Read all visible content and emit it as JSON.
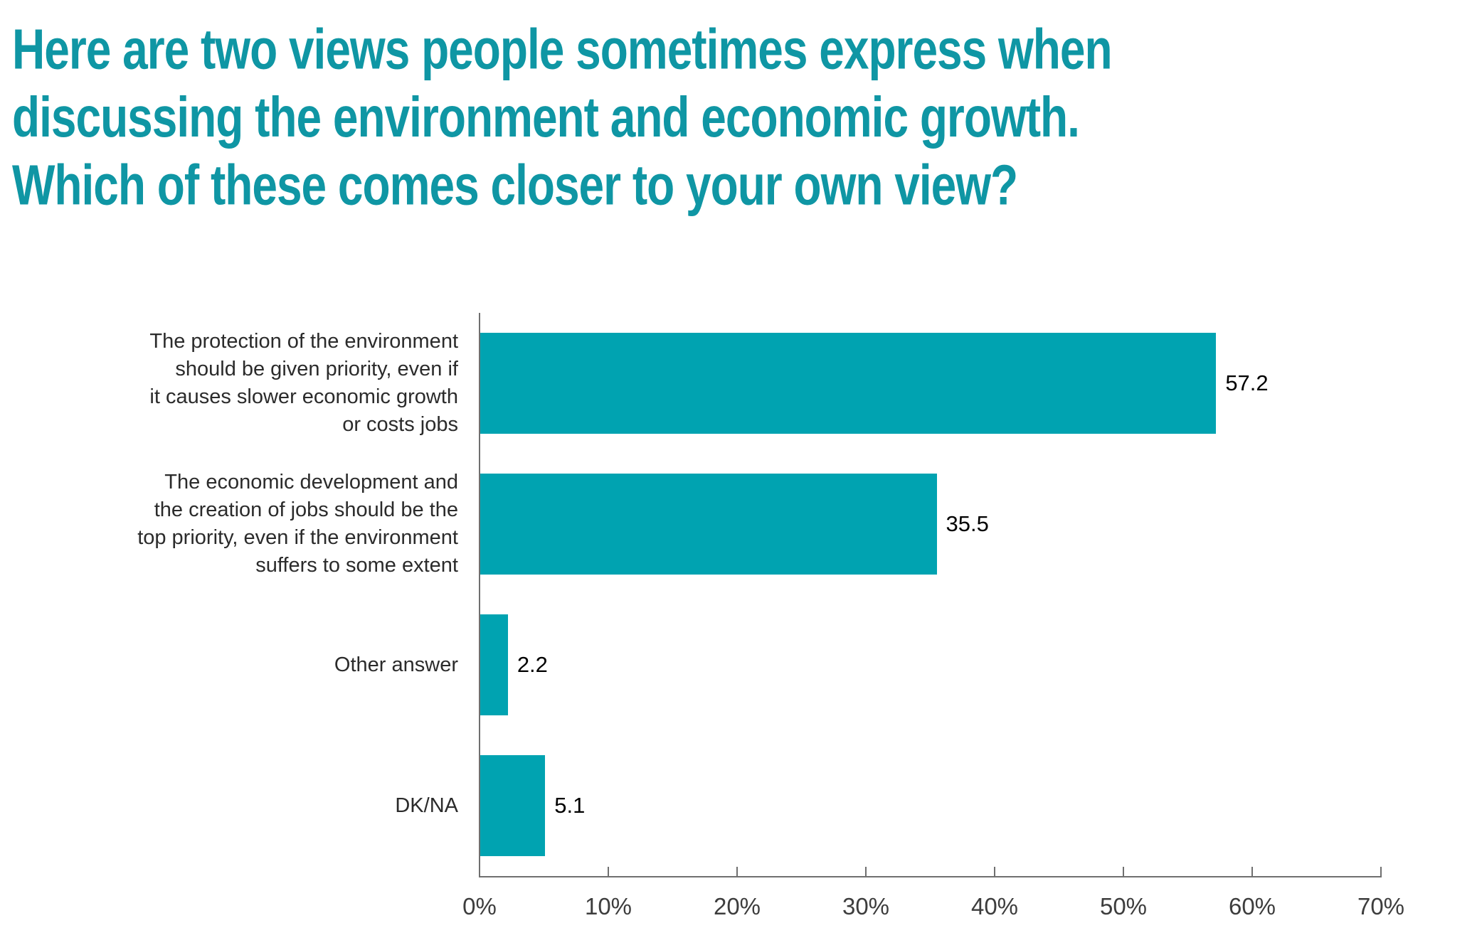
{
  "title": {
    "text": "Here are two views people sometimes express when discussing the environment and economic growth. Which of these comes closer to your own view?",
    "lines": [
      "Here are two views people sometimes express when",
      "discussing the environment and economic growth.",
      "Which of these comes closer to your own view?"
    ]
  },
  "colors": {
    "title": "#0F96A4",
    "bar": "#00A3B1",
    "axis": "#6F6F6F",
    "category_label": "#2B2B2B",
    "value_label": "#000000",
    "tick_label": "#3D3D3D",
    "background": "#FFFFFF"
  },
  "chart_data": {
    "type": "bar",
    "orientation": "horizontal",
    "title": "Here are two views people sometimes express when discussing the environment and economic growth. Which of these comes closer to your own view?",
    "categories": [
      "The protection of the environment should be given priority, even if it causes slower economic growth or costs jobs",
      "The economic development and the creation of jobs should be the top priority, even if the environment suffers to some extent",
      "Other answer",
      "DK/NA"
    ],
    "category_lines": [
      [
        "The protection of the environment",
        "should be given priority, even if",
        "it causes slower economic growth",
        "or costs jobs"
      ],
      [
        "The economic development and",
        "the creation of jobs should be the",
        "top priority, even if the environment",
        "suffers to some extent"
      ],
      [
        "Other answer"
      ],
      [
        "DK/NA"
      ]
    ],
    "values": [
      57.2,
      35.5,
      2.2,
      5.1
    ],
    "value_labels": [
      "57.2",
      "35.5",
      "2.2",
      "5.1"
    ],
    "xlabel": "",
    "ylabel": "",
    "xlim": [
      0,
      70
    ],
    "x_tick_values": [
      0,
      10,
      20,
      30,
      40,
      50,
      60,
      70
    ],
    "x_tick_labels": [
      "0%",
      "10%",
      "20%",
      "30%",
      "40%",
      "50%",
      "60%",
      "70%"
    ],
    "grid": false,
    "legend_position": "none",
    "bar_value_position": "outside-right"
  }
}
